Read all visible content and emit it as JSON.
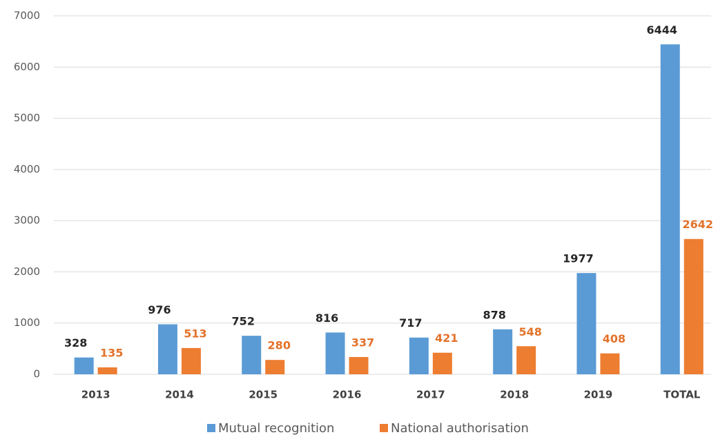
{
  "chart_data": {
    "type": "bar",
    "categories": [
      "2013",
      "2014",
      "2015",
      "2016",
      "2017",
      "2018",
      "2019",
      "TOTAL"
    ],
    "series": [
      {
        "name": "Mutual recognition",
        "color": "#5b9bd5",
        "label_color": "#262626",
        "values": [
          328,
          976,
          752,
          816,
          717,
          878,
          1977,
          6444
        ]
      },
      {
        "name": "National authorisation",
        "color": "#ed7d31",
        "label_color": "#e2722a",
        "values": [
          135,
          513,
          280,
          337,
          421,
          548,
          408,
          2642
        ]
      }
    ],
    "ylim": [
      0,
      7000
    ],
    "yticks": [
      0,
      1000,
      2000,
      3000,
      4000,
      5000,
      6000,
      7000
    ],
    "grid": true,
    "legend": "bottom"
  }
}
